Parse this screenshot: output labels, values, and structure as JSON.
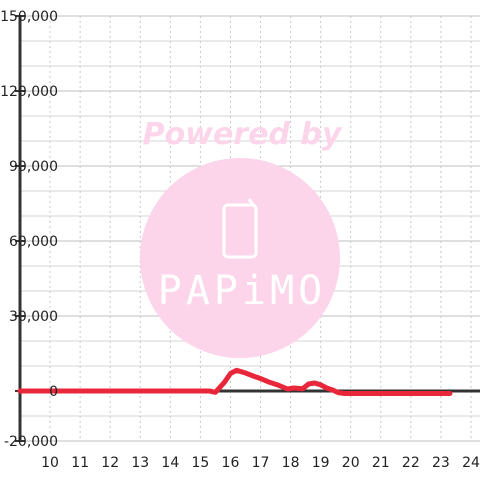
{
  "chart_data": {
    "type": "line",
    "title": "",
    "xlabel": "",
    "ylabel": "",
    "xlim": [
      9.0,
      24.3
    ],
    "ylim": [
      -20000,
      150000
    ],
    "x_ticks": [
      "10",
      "11",
      "12",
      "13",
      "14",
      "15",
      "16",
      "17",
      "18",
      "19",
      "20",
      "21",
      "22",
      "23",
      "24"
    ],
    "y_ticks": [
      "150,000",
      "120,000",
      "90,000",
      "60,000",
      "30,000",
      "0",
      "-20,000"
    ],
    "y_major": [
      -20000,
      0,
      30000,
      60000,
      90000,
      120000,
      150000
    ],
    "grid": true,
    "series_color": "#e8273a",
    "series": [
      {
        "x": [
          9.0,
          10,
          11,
          12,
          13,
          14,
          15,
          15.3,
          15.5,
          15.8,
          16.0,
          16.2,
          16.5,
          16.8,
          17.0,
          17.3,
          17.6,
          17.9,
          18.1,
          18.4,
          18.6,
          18.8,
          19.0,
          19.2,
          19.4,
          19.6,
          19.8,
          20.0,
          20.5,
          21,
          22,
          23,
          23.3
        ],
        "y": [
          0,
          0,
          0,
          0,
          0,
          0,
          0,
          0,
          -500,
          3500,
          7000,
          8300,
          7200,
          5800,
          5000,
          3500,
          2300,
          800,
          1200,
          900,
          2800,
          3200,
          2500,
          1200,
          400,
          -700,
          -1000,
          -1000,
          -1000,
          -1000,
          -1000,
          -1000,
          -1000
        ]
      }
    ]
  },
  "watermark": {
    "text": "Powered by",
    "logo_text": "PAPiMO",
    "circle_color": "#fcd5ea",
    "text_color": "#fcd5ea"
  }
}
